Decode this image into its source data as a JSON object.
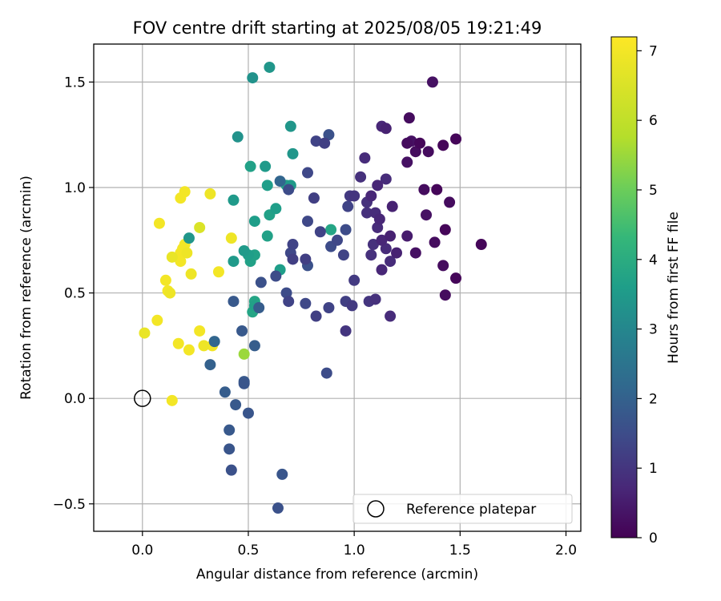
{
  "chart_data": {
    "type": "scatter",
    "title": "FOV centre drift starting at 2025/08/05 19:21:49",
    "xlabel": "Angular distance from reference (arcmin)",
    "ylabel": "Rotation from reference (arcmin)",
    "xlim": [
      -0.23,
      2.07
    ],
    "ylim": [
      -0.63,
      1.68
    ],
    "xticks": [
      0.0,
      0.5,
      1.0,
      1.5,
      2.0
    ],
    "xtick_labels": [
      "0.0",
      "0.5",
      "1.0",
      "1.5",
      "2.0"
    ],
    "yticks": [
      -0.5,
      0.0,
      0.5,
      1.0,
      1.5
    ],
    "ytick_labels": [
      "−0.5",
      "0.0",
      "0.5",
      "1.0",
      "1.5"
    ],
    "grid": true,
    "legend": {
      "position": "lower-right",
      "entries": [
        "Reference platepar"
      ]
    },
    "reference_point": {
      "x": 0.0,
      "y": 0.0,
      "label": "Reference platepar"
    },
    "colorbar": {
      "label": "Hours from first FF file",
      "colormap": "viridis",
      "range": [
        0,
        7.2
      ],
      "ticks": [
        0,
        1,
        2,
        3,
        4,
        5,
        6,
        7
      ],
      "tick_labels": [
        "0",
        "1",
        "2",
        "3",
        "4",
        "5",
        "6",
        "7"
      ]
    },
    "points": [
      {
        "x": 1.37,
        "y": 1.5,
        "t": 0.3
      },
      {
        "x": 1.26,
        "y": 1.33,
        "t": 0.2
      },
      {
        "x": 1.48,
        "y": 1.23,
        "t": 0.1
      },
      {
        "x": 1.25,
        "y": 1.21,
        "t": 0.2
      },
      {
        "x": 1.27,
        "y": 1.22,
        "t": 0.3
      },
      {
        "x": 1.31,
        "y": 1.21,
        "t": 0.1
      },
      {
        "x": 1.29,
        "y": 1.17,
        "t": 0.2
      },
      {
        "x": 1.42,
        "y": 1.2,
        "t": 0.1
      },
      {
        "x": 1.35,
        "y": 1.17,
        "t": 0.2
      },
      {
        "x": 1.25,
        "y": 1.12,
        "t": 0.3
      },
      {
        "x": 1.33,
        "y": 0.99,
        "t": 0.2
      },
      {
        "x": 1.39,
        "y": 0.99,
        "t": 0.1
      },
      {
        "x": 1.45,
        "y": 0.93,
        "t": 0.2
      },
      {
        "x": 1.34,
        "y": 0.87,
        "t": 0.3
      },
      {
        "x": 1.43,
        "y": 0.8,
        "t": 0.1
      },
      {
        "x": 1.38,
        "y": 0.74,
        "t": 0.2
      },
      {
        "x": 1.29,
        "y": 0.69,
        "t": 0.3
      },
      {
        "x": 1.6,
        "y": 0.73,
        "t": 0.1
      },
      {
        "x": 1.42,
        "y": 0.63,
        "t": 0.2
      },
      {
        "x": 1.48,
        "y": 0.57,
        "t": 0.1
      },
      {
        "x": 1.43,
        "y": 0.49,
        "t": 0.2
      },
      {
        "x": 1.13,
        "y": 1.29,
        "t": 0.7
      },
      {
        "x": 1.15,
        "y": 1.28,
        "t": 0.6
      },
      {
        "x": 1.05,
        "y": 1.14,
        "t": 0.8
      },
      {
        "x": 1.11,
        "y": 1.01,
        "t": 0.7
      },
      {
        "x": 1.15,
        "y": 1.04,
        "t": 0.8
      },
      {
        "x": 1.03,
        "y": 1.05,
        "t": 0.9
      },
      {
        "x": 1.08,
        "y": 0.96,
        "t": 0.7
      },
      {
        "x": 1.18,
        "y": 0.91,
        "t": 0.6
      },
      {
        "x": 1.06,
        "y": 0.93,
        "t": 0.9
      },
      {
        "x": 1.0,
        "y": 0.96,
        "t": 1.0
      },
      {
        "x": 1.1,
        "y": 0.88,
        "t": 0.8
      },
      {
        "x": 1.12,
        "y": 0.85,
        "t": 0.7
      },
      {
        "x": 1.06,
        "y": 0.88,
        "t": 0.9
      },
      {
        "x": 1.11,
        "y": 0.81,
        "t": 0.8
      },
      {
        "x": 1.17,
        "y": 0.77,
        "t": 0.6
      },
      {
        "x": 1.25,
        "y": 0.77,
        "t": 0.5
      },
      {
        "x": 1.09,
        "y": 0.73,
        "t": 0.9
      },
      {
        "x": 1.13,
        "y": 0.75,
        "t": 0.7
      },
      {
        "x": 1.15,
        "y": 0.71,
        "t": 0.8
      },
      {
        "x": 1.08,
        "y": 0.68,
        "t": 0.9
      },
      {
        "x": 1.2,
        "y": 0.69,
        "t": 0.6
      },
      {
        "x": 1.13,
        "y": 0.61,
        "t": 0.7
      },
      {
        "x": 1.17,
        "y": 0.65,
        "t": 0.8
      },
      {
        "x": 1.1,
        "y": 0.47,
        "t": 0.9
      },
      {
        "x": 1.07,
        "y": 0.46,
        "t": 1.0
      },
      {
        "x": 1.17,
        "y": 0.39,
        "t": 0.8
      },
      {
        "x": 1.0,
        "y": 0.56,
        "t": 1.1
      },
      {
        "x": 0.96,
        "y": 0.46,
        "t": 1.2
      },
      {
        "x": 0.99,
        "y": 0.44,
        "t": 1.1
      },
      {
        "x": 0.96,
        "y": 0.32,
        "t": 1.0
      },
      {
        "x": 0.88,
        "y": 1.25,
        "t": 1.6
      },
      {
        "x": 0.82,
        "y": 1.22,
        "t": 1.3
      },
      {
        "x": 0.86,
        "y": 1.21,
        "t": 1.2
      },
      {
        "x": 0.78,
        "y": 1.07,
        "t": 1.4
      },
      {
        "x": 0.69,
        "y": 0.99,
        "t": 1.5
      },
      {
        "x": 0.81,
        "y": 0.95,
        "t": 1.2
      },
      {
        "x": 0.98,
        "y": 0.96,
        "t": 1.1
      },
      {
        "x": 0.97,
        "y": 0.91,
        "t": 1.3
      },
      {
        "x": 0.78,
        "y": 0.84,
        "t": 1.4
      },
      {
        "x": 0.84,
        "y": 0.79,
        "t": 1.3
      },
      {
        "x": 0.96,
        "y": 0.8,
        "t": 1.5
      },
      {
        "x": 0.92,
        "y": 0.75,
        "t": 1.4
      },
      {
        "x": 0.89,
        "y": 0.72,
        "t": 1.5
      },
      {
        "x": 0.71,
        "y": 0.73,
        "t": 1.3
      },
      {
        "x": 0.7,
        "y": 0.69,
        "t": 1.4
      },
      {
        "x": 0.71,
        "y": 0.66,
        "t": 1.2
      },
      {
        "x": 0.77,
        "y": 0.66,
        "t": 1.2
      },
      {
        "x": 0.78,
        "y": 0.63,
        "t": 1.6
      },
      {
        "x": 0.95,
        "y": 0.68,
        "t": 1.3
      },
      {
        "x": 0.63,
        "y": 0.58,
        "t": 1.5
      },
      {
        "x": 0.56,
        "y": 0.55,
        "t": 1.6
      },
      {
        "x": 0.68,
        "y": 0.5,
        "t": 1.5
      },
      {
        "x": 0.69,
        "y": 0.46,
        "t": 1.3
      },
      {
        "x": 0.77,
        "y": 0.45,
        "t": 1.4
      },
      {
        "x": 0.82,
        "y": 0.39,
        "t": 1.2
      },
      {
        "x": 0.88,
        "y": 0.43,
        "t": 1.3
      },
      {
        "x": 0.87,
        "y": 0.12,
        "t": 1.5
      },
      {
        "x": 0.65,
        "y": 1.03,
        "t": 2.1
      },
      {
        "x": 0.43,
        "y": 0.46,
        "t": 1.8
      },
      {
        "x": 0.55,
        "y": 0.43,
        "t": 1.9
      },
      {
        "x": 0.47,
        "y": 0.32,
        "t": 1.8
      },
      {
        "x": 0.53,
        "y": 0.25,
        "t": 1.9
      },
      {
        "x": 0.34,
        "y": 0.27,
        "t": 2.1
      },
      {
        "x": 0.32,
        "y": 0.16,
        "t": 2.0
      },
      {
        "x": 0.48,
        "y": 0.08,
        "t": 1.8
      },
      {
        "x": 0.48,
        "y": 0.07,
        "t": 1.7
      },
      {
        "x": 0.39,
        "y": 0.03,
        "t": 1.9
      },
      {
        "x": 0.44,
        "y": -0.03,
        "t": 1.8
      },
      {
        "x": 0.5,
        "y": -0.07,
        "t": 1.7
      },
      {
        "x": 0.41,
        "y": -0.15,
        "t": 1.8
      },
      {
        "x": 0.41,
        "y": -0.24,
        "t": 1.7
      },
      {
        "x": 0.42,
        "y": -0.34,
        "t": 1.6
      },
      {
        "x": 0.66,
        "y": -0.36,
        "t": 1.7
      },
      {
        "x": 0.64,
        "y": -0.52,
        "t": 1.6
      },
      {
        "x": 0.6,
        "y": 1.57,
        "t": 3.4
      },
      {
        "x": 0.52,
        "y": 1.52,
        "t": 3.3
      },
      {
        "x": 0.7,
        "y": 1.29,
        "t": 3.4
      },
      {
        "x": 0.45,
        "y": 1.24,
        "t": 3.3
      },
      {
        "x": 0.71,
        "y": 1.16,
        "t": 3.4
      },
      {
        "x": 0.58,
        "y": 1.1,
        "t": 3.5
      },
      {
        "x": 0.51,
        "y": 1.1,
        "t": 3.7
      },
      {
        "x": 0.59,
        "y": 1.01,
        "t": 3.6
      },
      {
        "x": 0.68,
        "y": 1.01,
        "t": 3.7
      },
      {
        "x": 0.7,
        "y": 1.01,
        "t": 3.5
      },
      {
        "x": 0.43,
        "y": 0.94,
        "t": 3.5
      },
      {
        "x": 0.63,
        "y": 0.9,
        "t": 3.6
      },
      {
        "x": 0.6,
        "y": 0.87,
        "t": 3.7
      },
      {
        "x": 0.53,
        "y": 0.84,
        "t": 3.6
      },
      {
        "x": 0.59,
        "y": 0.77,
        "t": 3.7
      },
      {
        "x": 0.89,
        "y": 0.8,
        "t": 3.8
      },
      {
        "x": 0.48,
        "y": 0.7,
        "t": 3.5
      },
      {
        "x": 0.5,
        "y": 0.68,
        "t": 3.6
      },
      {
        "x": 0.53,
        "y": 0.68,
        "t": 3.7
      },
      {
        "x": 0.51,
        "y": 0.65,
        "t": 3.7
      },
      {
        "x": 0.43,
        "y": 0.65,
        "t": 3.5
      },
      {
        "x": 0.65,
        "y": 0.61,
        "t": 3.6
      },
      {
        "x": 0.53,
        "y": 0.46,
        "t": 3.8
      },
      {
        "x": 0.53,
        "y": 0.44,
        "t": 3.7
      },
      {
        "x": 0.52,
        "y": 0.41,
        "t": 3.8
      },
      {
        "x": 0.22,
        "y": 0.76,
        "t": 3.4
      },
      {
        "x": 0.48,
        "y": 0.21,
        "t": 5.5
      },
      {
        "x": 0.2,
        "y": 0.98,
        "t": 7.0
      },
      {
        "x": 0.18,
        "y": 0.95,
        "t": 7.0
      },
      {
        "x": 0.32,
        "y": 0.97,
        "t": 6.9
      },
      {
        "x": 0.08,
        "y": 0.83,
        "t": 7.0
      },
      {
        "x": 0.27,
        "y": 0.81,
        "t": 6.5
      },
      {
        "x": 0.42,
        "y": 0.76,
        "t": 6.9
      },
      {
        "x": 0.2,
        "y": 0.73,
        "t": 7.0
      },
      {
        "x": 0.19,
        "y": 0.71,
        "t": 7.0
      },
      {
        "x": 0.21,
        "y": 0.69,
        "t": 6.9
      },
      {
        "x": 0.18,
        "y": 0.69,
        "t": 7.0
      },
      {
        "x": 0.14,
        "y": 0.67,
        "t": 6.8
      },
      {
        "x": 0.18,
        "y": 0.65,
        "t": 7.0
      },
      {
        "x": 0.36,
        "y": 0.6,
        "t": 7.0
      },
      {
        "x": 0.23,
        "y": 0.59,
        "t": 6.9
      },
      {
        "x": 0.11,
        "y": 0.56,
        "t": 7.0
      },
      {
        "x": 0.12,
        "y": 0.51,
        "t": 7.0
      },
      {
        "x": 0.13,
        "y": 0.5,
        "t": 6.9
      },
      {
        "x": 0.07,
        "y": 0.37,
        "t": 7.0
      },
      {
        "x": 0.01,
        "y": 0.31,
        "t": 6.8
      },
      {
        "x": 0.27,
        "y": 0.32,
        "t": 7.0
      },
      {
        "x": 0.17,
        "y": 0.26,
        "t": 7.0
      },
      {
        "x": 0.29,
        "y": 0.25,
        "t": 6.9
      },
      {
        "x": 0.33,
        "y": 0.25,
        "t": 7.0
      },
      {
        "x": 0.22,
        "y": 0.23,
        "t": 7.0
      },
      {
        "x": 0.14,
        "y": -0.01,
        "t": 7.0
      }
    ]
  }
}
